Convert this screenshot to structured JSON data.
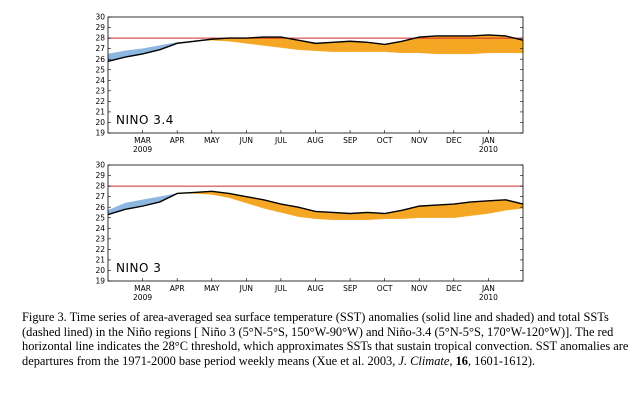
{
  "chart_data": [
    {
      "type": "area",
      "panel_label": "NINO 3.4",
      "ylim": [
        19,
        30
      ],
      "yticks": [
        19,
        20,
        21,
        22,
        23,
        24,
        25,
        26,
        27,
        28,
        29,
        30
      ],
      "month_ticks": [
        {
          "x": 1.0,
          "label": "MAR",
          "year": "2009"
        },
        {
          "x": 2.0,
          "label": "APR",
          "year": ""
        },
        {
          "x": 3.0,
          "label": "MAY",
          "year": ""
        },
        {
          "x": 4.0,
          "label": "JUN",
          "year": ""
        },
        {
          "x": 5.0,
          "label": "JUL",
          "year": ""
        },
        {
          "x": 6.0,
          "label": "AUG",
          "year": ""
        },
        {
          "x": 7.0,
          "label": "SEP",
          "year": ""
        },
        {
          "x": 8.0,
          "label": "OCT",
          "year": ""
        },
        {
          "x": 9.0,
          "label": "NOV",
          "year": ""
        },
        {
          "x": 10.0,
          "label": "DEC",
          "year": ""
        },
        {
          "x": 11.0,
          "label": "JAN",
          "year": "2010"
        }
      ],
      "xlim": [
        0,
        12.0
      ],
      "threshold": 28,
      "series": [
        {
          "values_sst": [
            [
              0.0,
              25.8
            ],
            [
              0.5,
              26.2
            ],
            [
              1.0,
              26.5
            ],
            [
              1.5,
              26.9
            ],
            [
              2.0,
              27.5
            ],
            [
              2.5,
              27.7
            ],
            [
              3.0,
              27.9
            ],
            [
              3.5,
              28.0
            ],
            [
              4.0,
              28.0
            ],
            [
              4.5,
              28.1
            ],
            [
              5.0,
              28.1
            ],
            [
              5.5,
              27.8
            ],
            [
              6.0,
              27.5
            ],
            [
              6.5,
              27.6
            ],
            [
              7.0,
              27.7
            ],
            [
              7.5,
              27.6
            ],
            [
              8.0,
              27.4
            ],
            [
              8.5,
              27.7
            ],
            [
              9.0,
              28.1
            ],
            [
              9.5,
              28.2
            ],
            [
              10.0,
              28.2
            ],
            [
              10.5,
              28.2
            ],
            [
              11.0,
              28.3
            ],
            [
              11.5,
              28.2
            ],
            [
              12.0,
              27.8
            ]
          ]
        },
        {
          "values_clim": [
            [
              0.0,
              26.5
            ],
            [
              0.5,
              26.8
            ],
            [
              1.0,
              27.0
            ],
            [
              1.5,
              27.3
            ],
            [
              2.0,
              27.6
            ],
            [
              2.5,
              27.7
            ],
            [
              3.0,
              27.8
            ],
            [
              3.5,
              27.7
            ],
            [
              4.0,
              27.5
            ],
            [
              4.5,
              27.3
            ],
            [
              5.0,
              27.1
            ],
            [
              5.5,
              26.9
            ],
            [
              6.0,
              26.8
            ],
            [
              6.5,
              26.7
            ],
            [
              7.0,
              26.7
            ],
            [
              7.5,
              26.7
            ],
            [
              8.0,
              26.7
            ],
            [
              8.5,
              26.6
            ],
            [
              9.0,
              26.6
            ],
            [
              9.5,
              26.5
            ],
            [
              10.0,
              26.5
            ],
            [
              10.5,
              26.5
            ],
            [
              11.0,
              26.6
            ],
            [
              11.5,
              26.6
            ],
            [
              12.0,
              26.6
            ]
          ]
        }
      ],
      "colors": {
        "warm": "#F5A623",
        "cool": "#8DB6E0",
        "threshold": "#D22B2B"
      }
    },
    {
      "type": "area",
      "panel_label": "NINO 3",
      "ylim": [
        19,
        30
      ],
      "yticks": [
        19,
        20,
        21,
        22,
        23,
        24,
        25,
        26,
        27,
        28,
        29,
        30
      ],
      "month_ticks": [
        {
          "x": 1.0,
          "label": "MAR",
          "year": "2009"
        },
        {
          "x": 2.0,
          "label": "APR",
          "year": ""
        },
        {
          "x": 3.0,
          "label": "MAY",
          "year": ""
        },
        {
          "x": 4.0,
          "label": "JUN",
          "year": ""
        },
        {
          "x": 5.0,
          "label": "JUL",
          "year": ""
        },
        {
          "x": 6.0,
          "label": "AUG",
          "year": ""
        },
        {
          "x": 7.0,
          "label": "SEP",
          "year": ""
        },
        {
          "x": 8.0,
          "label": "OCT",
          "year": ""
        },
        {
          "x": 9.0,
          "label": "NOV",
          "year": ""
        },
        {
          "x": 10.0,
          "label": "DEC",
          "year": ""
        },
        {
          "x": 11.0,
          "label": "JAN",
          "year": "2010"
        }
      ],
      "xlim": [
        0,
        12.0
      ],
      "threshold": 28,
      "series": [
        {
          "values_sst": [
            [
              0.0,
              25.3
            ],
            [
              0.5,
              25.8
            ],
            [
              1.0,
              26.1
            ],
            [
              1.5,
              26.5
            ],
            [
              2.0,
              27.3
            ],
            [
              2.5,
              27.4
            ],
            [
              3.0,
              27.5
            ],
            [
              3.5,
              27.3
            ],
            [
              4.0,
              27.0
            ],
            [
              4.5,
              26.7
            ],
            [
              5.0,
              26.3
            ],
            [
              5.5,
              26.0
            ],
            [
              6.0,
              25.6
            ],
            [
              6.5,
              25.5
            ],
            [
              7.0,
              25.4
            ],
            [
              7.5,
              25.5
            ],
            [
              8.0,
              25.4
            ],
            [
              8.5,
              25.7
            ],
            [
              9.0,
              26.1
            ],
            [
              9.5,
              26.2
            ],
            [
              10.0,
              26.3
            ],
            [
              10.5,
              26.5
            ],
            [
              11.0,
              26.6
            ],
            [
              11.5,
              26.7
            ],
            [
              12.0,
              26.3
            ]
          ]
        },
        {
          "values_clim": [
            [
              0.0,
              25.7
            ],
            [
              0.5,
              26.4
            ],
            [
              1.0,
              26.7
            ],
            [
              1.5,
              27.0
            ],
            [
              2.0,
              27.3
            ],
            [
              2.5,
              27.3
            ],
            [
              3.0,
              27.2
            ],
            [
              3.5,
              26.9
            ],
            [
              4.0,
              26.4
            ],
            [
              4.5,
              25.9
            ],
            [
              5.0,
              25.5
            ],
            [
              5.5,
              25.1
            ],
            [
              6.0,
              24.9
            ],
            [
              6.5,
              24.8
            ],
            [
              7.0,
              24.8
            ],
            [
              7.5,
              24.8
            ],
            [
              8.0,
              24.9
            ],
            [
              8.5,
              24.9
            ],
            [
              9.0,
              25.0
            ],
            [
              9.5,
              25.0
            ],
            [
              10.0,
              25.0
            ],
            [
              10.5,
              25.2
            ],
            [
              11.0,
              25.4
            ],
            [
              11.5,
              25.7
            ],
            [
              12.0,
              25.9
            ]
          ]
        }
      ],
      "colors": {
        "warm": "#F5A623",
        "cool": "#8DB6E0",
        "threshold": "#D22B2B"
      }
    }
  ],
  "caption": {
    "p1": "Figure 3. Time series of area-averaged sea surface temperature (SST) anomalies (solid line and shaded) and total SSTs (dashed lined)  in the Niño regions [ Niño 3 (5°N-5°S, 150°W-90°W) and Niño-3.4 (5°N-5°S, 170°W-120°W)].  The red horizontal line indicates the 28°C threshold, which approximates SSTs that sustain tropical convection.   SST anomalies are departures from the 1971-2000 base period weekly means (Xue et al. 2003, ",
    "journal": "J. Climate",
    "sep": ", ",
    "volume": "16",
    "tail": ", 1601-1612)."
  }
}
